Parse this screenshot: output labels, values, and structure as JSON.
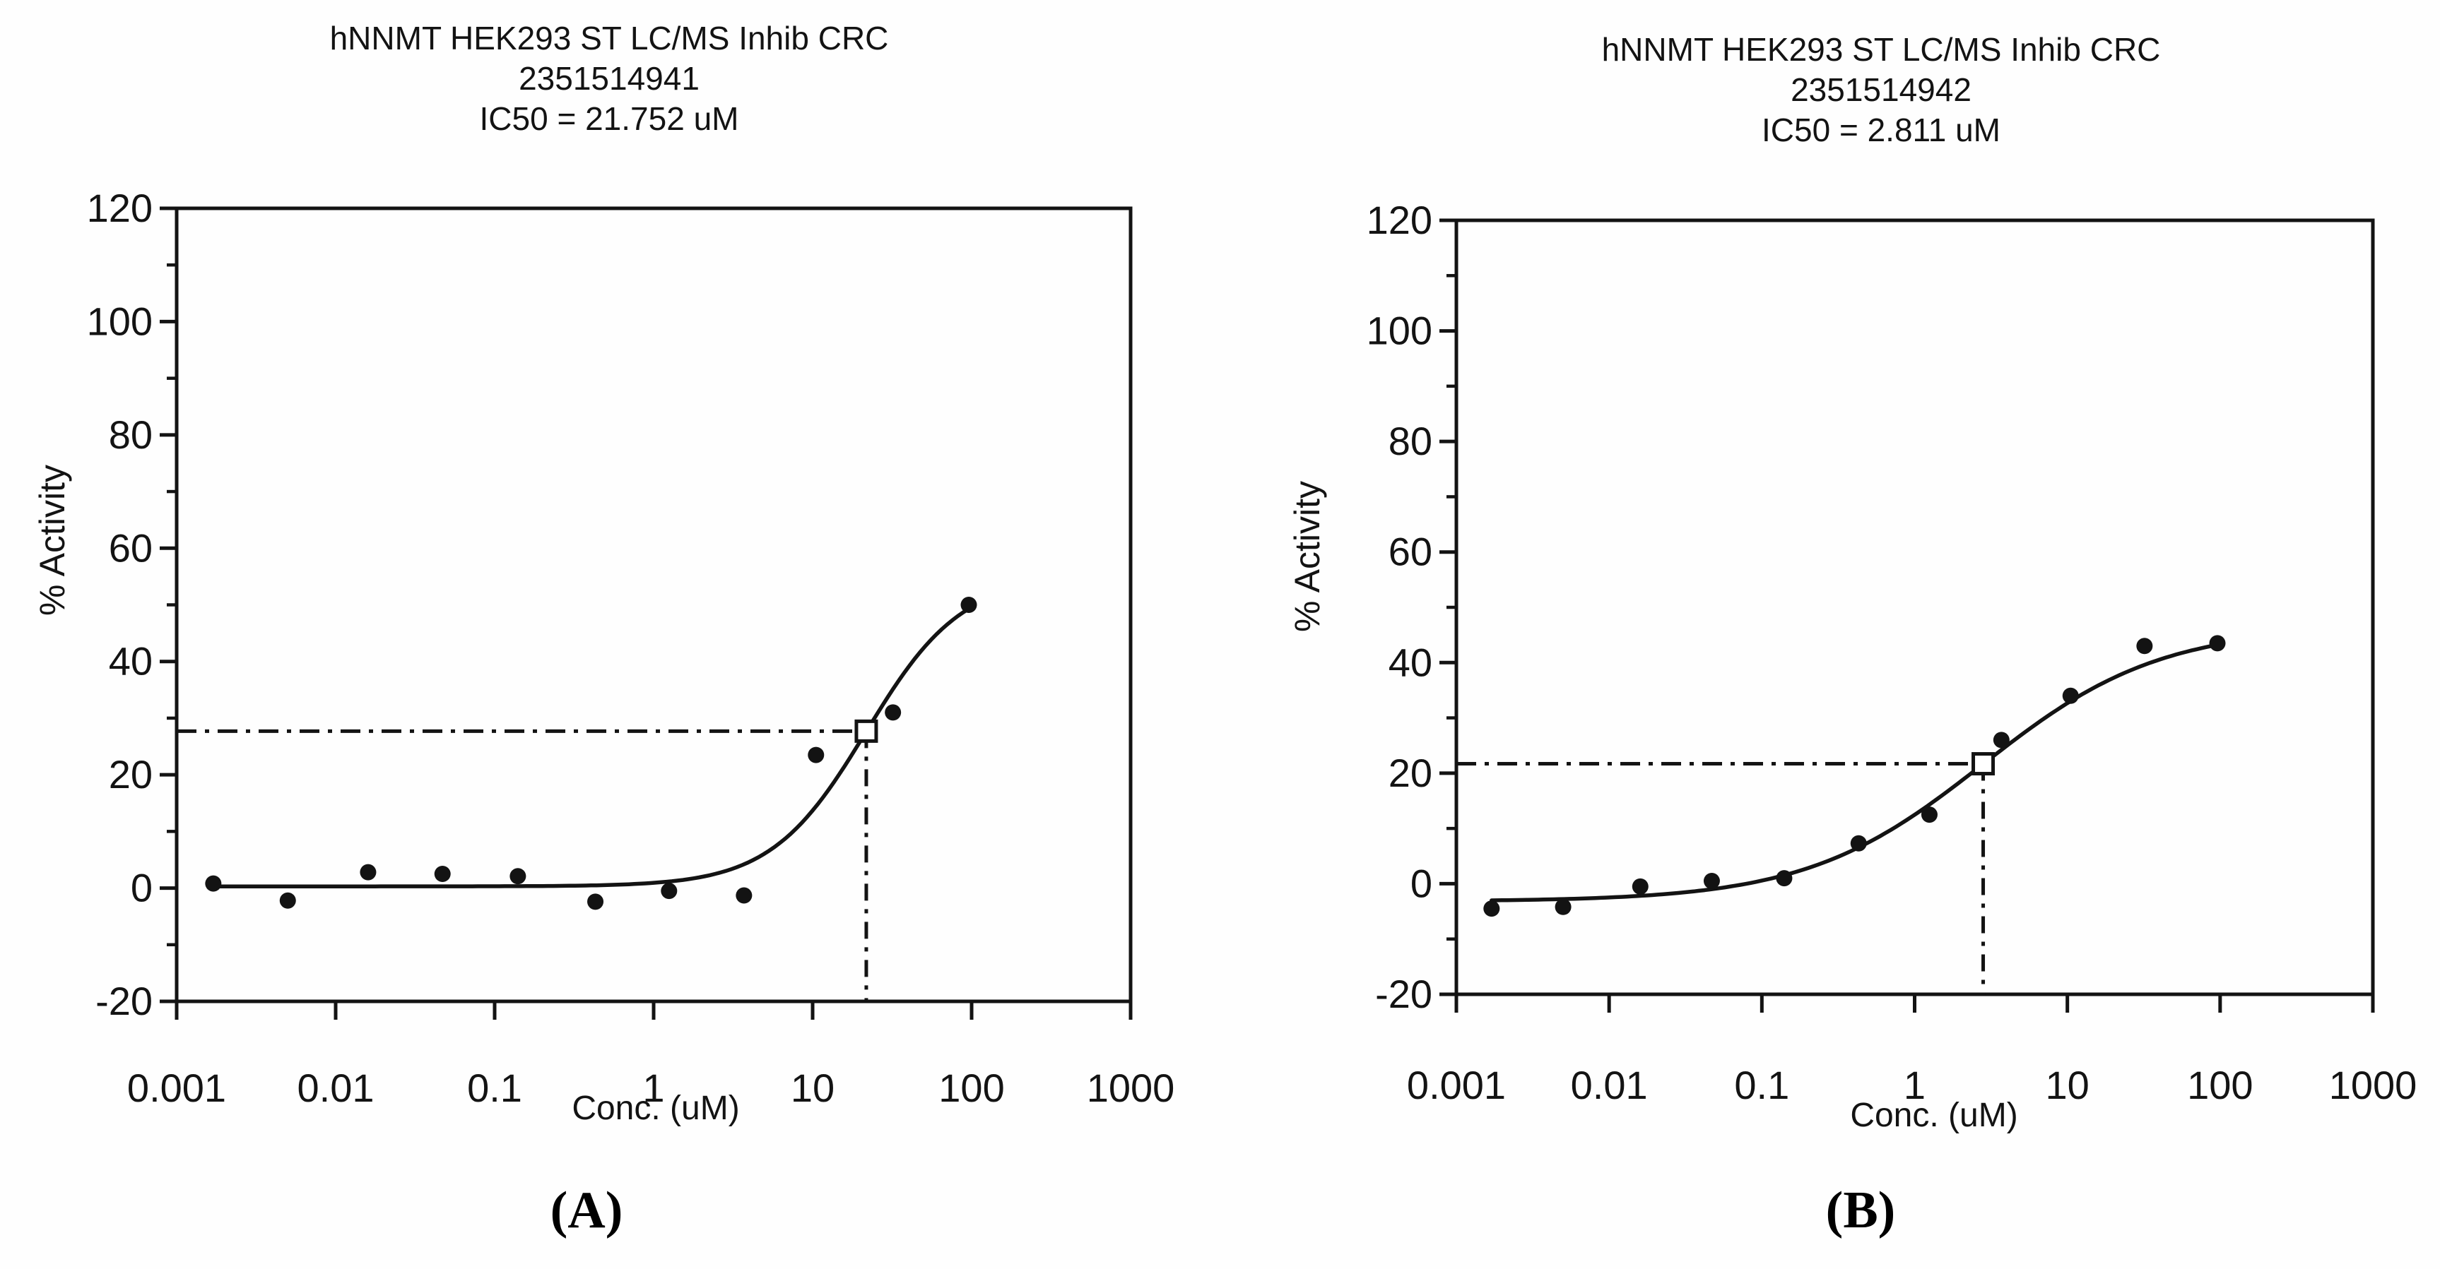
{
  "colors": {
    "ink": "#131313",
    "background": "#fefefe"
  },
  "figure": {
    "panels": [
      {
        "caption": "(A)",
        "title_line1": "hNNMT HEK293 ST LC/MS Inhib CRC",
        "title_line2": "2351514941",
        "title_line3": "IC50 = 21.752 uM",
        "xlabel": "Conc. (uM)",
        "ylabel": "% Activity"
      },
      {
        "caption": "(B)",
        "title_line1": "hNNMT HEK293 ST LC/MS Inhib CRC",
        "title_line2": "2351514942",
        "title_line3": "IC50 = 2.811 uM",
        "xlabel": "Conc. (uM)",
        "ylabel": "% Activity"
      }
    ]
  },
  "chart_data": [
    {
      "type": "scatter",
      "title": "hNNMT HEK293 ST LC/MS Inhib CRC",
      "subtitle": "2351514941",
      "annotation": "IC50 = 21.752 uM",
      "xlabel": "Conc. (uM)",
      "ylabel": "% Activity",
      "x_scale": "log",
      "xlim": [
        0.001,
        1000
      ],
      "ylim": [
        -20,
        120
      ],
      "x_ticks": [
        0.001,
        0.01,
        0.1,
        1,
        10,
        100,
        1000
      ],
      "x_tick_labels": [
        "0.001",
        "0.01",
        "0.1",
        "1",
        "10",
        "100",
        "1000"
      ],
      "y_ticks": [
        -20,
        0,
        20,
        40,
        60,
        80,
        100,
        120
      ],
      "y_minor_ticks": [
        -10,
        10,
        30,
        50,
        70,
        90,
        110
      ],
      "grid": false,
      "points": [
        [
          0.0017,
          0.8
        ],
        [
          0.005,
          -2.2
        ],
        [
          0.016,
          2.8
        ],
        [
          0.047,
          2.5
        ],
        [
          0.14,
          2.1
        ],
        [
          0.43,
          -2.4
        ],
        [
          1.25,
          -0.5
        ],
        [
          3.7,
          -1.3
        ],
        [
          10.5,
          23.5
        ],
        [
          32,
          31
        ],
        [
          96,
          50
        ]
      ],
      "fit_curve": {
        "model": "4PL",
        "bottom": 0.3,
        "top": 55,
        "ic50": 21.752,
        "hill": 1.45,
        "x_range": [
          0.0017,
          96
        ]
      },
      "ic50": 21.752,
      "ic50_marker": {
        "x": 21.752,
        "y": 27.7
      },
      "crosshair_y": 27.7
    },
    {
      "type": "scatter",
      "title": "hNNMT HEK293 ST LC/MS Inhib CRC",
      "subtitle": "2351514942",
      "annotation": "IC50 = 2.811 uM",
      "xlabel": "Conc. (uM)",
      "ylabel": "% Activity",
      "x_scale": "log",
      "xlim": [
        0.001,
        1000
      ],
      "ylim": [
        -20,
        120
      ],
      "x_ticks": [
        0.001,
        0.01,
        0.1,
        1,
        10,
        100,
        1000
      ],
      "x_tick_labels": [
        "0.001",
        "0.01",
        "0.1",
        "1",
        "10",
        "100",
        "1000"
      ],
      "y_ticks": [
        -20,
        0,
        20,
        40,
        60,
        80,
        100,
        120
      ],
      "y_minor_ticks": [
        -10,
        10,
        30,
        50,
        70,
        90,
        110
      ],
      "grid": false,
      "points": [
        [
          0.0017,
          -4.5
        ],
        [
          0.005,
          -4.2
        ],
        [
          0.016,
          -0.5
        ],
        [
          0.047,
          0.5
        ],
        [
          0.14,
          1.0
        ],
        [
          0.43,
          7.3
        ],
        [
          1.25,
          12.5
        ],
        [
          3.7,
          26
        ],
        [
          10.5,
          34
        ],
        [
          32,
          43
        ],
        [
          96,
          43.5
        ]
      ],
      "fit_curve": {
        "model": "4PL",
        "bottom": -3.2,
        "top": 46.5,
        "ic50": 2.811,
        "hill": 0.75,
        "x_range": [
          0.0017,
          96
        ]
      },
      "ic50": 2.811,
      "ic50_marker": {
        "x": 2.811,
        "y": 21.7
      },
      "crosshair_y": 21.7
    }
  ]
}
